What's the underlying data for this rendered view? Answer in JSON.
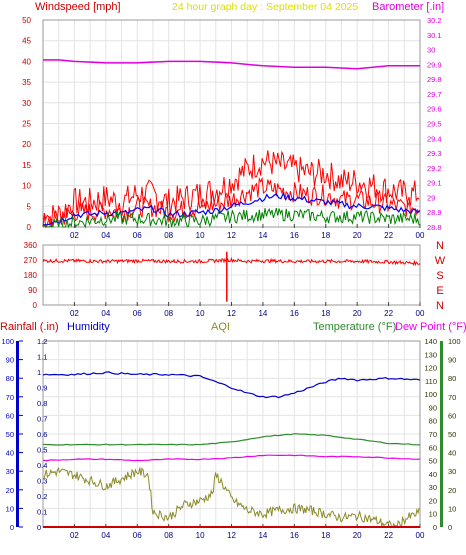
{
  "header": {
    "windspeed_label": "Windspeed [mph]",
    "graph_title": "24 hour graph day : September 04 2025",
    "barometer_label": "Barometer [.in]"
  },
  "lower_header": {
    "rainfall_label": "Rainfall (.in)",
    "humidity_label": "Humidity",
    "aqi_label": "AQI",
    "temperature_label": "Temperature (°F)",
    "dewpoint_label": "Dew Point (°F)"
  },
  "colors": {
    "wind": "#ff0000",
    "wind_avg": "#0000ff",
    "wind_low": "#008000",
    "barometer": "#dd00dd",
    "direction": "#ff0000",
    "rain": "#cc0000",
    "humidity": "#0000cc",
    "aqi": "#8b8b2a",
    "temperature": "#2e8b2e",
    "dewpoint": "#ee00ee",
    "title": "#dddd00",
    "axis_red": "#cc0000"
  },
  "chart_data": [
    {
      "type": "line",
      "name": "wind-barometer",
      "x_ticks": [
        "02",
        "04",
        "06",
        "08",
        "10",
        "12",
        "14",
        "16",
        "18",
        "20",
        "22",
        "00"
      ],
      "x_range": [
        0,
        24
      ],
      "left_axis": {
        "label": "Windspeed [mph]",
        "range": [
          0,
          50
        ],
        "ticks": [
          0,
          5,
          10,
          15,
          20,
          25,
          30,
          35,
          40,
          45,
          50
        ]
      },
      "right_axis": {
        "label": "Barometer [.in]",
        "range": [
          28.8,
          30.2
        ],
        "ticks": [
          "28.8",
          "28.9",
          "29",
          "29.1",
          "29.2",
          "29.3",
          "29.4",
          "29.5",
          "29.6",
          "29.7",
          "29.8",
          "29.9",
          "30",
          "30.1",
          "30.2"
        ]
      },
      "gust_envelope": [
        [
          0,
          2
        ],
        [
          1,
          3
        ],
        [
          2,
          6
        ],
        [
          3,
          6
        ],
        [
          4,
          7
        ],
        [
          5,
          6
        ],
        [
          6,
          8
        ],
        [
          7,
          8
        ],
        [
          8,
          6
        ],
        [
          9,
          7
        ],
        [
          10,
          8
        ],
        [
          11,
          9
        ],
        [
          12,
          11
        ],
        [
          13,
          14
        ],
        [
          14,
          16
        ],
        [
          15,
          15
        ],
        [
          16,
          14
        ],
        [
          17,
          13
        ],
        [
          18,
          13
        ],
        [
          19,
          11
        ],
        [
          20,
          11
        ],
        [
          21,
          10
        ],
        [
          22,
          9
        ],
        [
          23,
          8
        ],
        [
          24,
          8
        ]
      ],
      "average_wind": [
        [
          0,
          1
        ],
        [
          1,
          1.5
        ],
        [
          2,
          3
        ],
        [
          3,
          3
        ],
        [
          4,
          3.5
        ],
        [
          5,
          3.2
        ],
        [
          6,
          4
        ],
        [
          7,
          4.5
        ],
        [
          8,
          3
        ],
        [
          9,
          3.2
        ],
        [
          10,
          3.5
        ],
        [
          11,
          4
        ],
        [
          12,
          5
        ],
        [
          13,
          6
        ],
        [
          14,
          7
        ],
        [
          15,
          7.5
        ],
        [
          16,
          7
        ],
        [
          17,
          6.5
        ],
        [
          18,
          6
        ],
        [
          19,
          5.5
        ],
        [
          20,
          5
        ],
        [
          21,
          5
        ],
        [
          22,
          4.5
        ],
        [
          23,
          4
        ],
        [
          24,
          3.5
        ]
      ],
      "low_wind": [
        [
          0,
          0
        ],
        [
          2,
          1
        ],
        [
          4,
          2
        ],
        [
          6,
          2
        ],
        [
          8,
          1.5
        ],
        [
          10,
          1.5
        ],
        [
          12,
          2.5
        ],
        [
          14,
          3
        ],
        [
          16,
          3
        ],
        [
          18,
          2.5
        ],
        [
          20,
          2.5
        ],
        [
          22,
          2
        ],
        [
          24,
          2
        ]
      ],
      "barometer": [
        [
          0,
          29.93
        ],
        [
          1,
          29.93
        ],
        [
          2,
          29.92
        ],
        [
          4,
          29.91
        ],
        [
          6,
          29.91
        ],
        [
          8,
          29.92
        ],
        [
          10,
          29.92
        ],
        [
          12,
          29.91
        ],
        [
          14,
          29.89
        ],
        [
          16,
          29.88
        ],
        [
          18,
          29.88
        ],
        [
          20,
          29.87
        ],
        [
          21,
          29.88
        ],
        [
          22,
          29.89
        ],
        [
          24,
          29.89
        ]
      ]
    },
    {
      "type": "scatter",
      "name": "wind-direction",
      "x_ticks": [
        "02",
        "04",
        "06",
        "08",
        "10",
        "12",
        "14",
        "16",
        "18",
        "20",
        "22",
        "00"
      ],
      "x_range": [
        0,
        24
      ],
      "left_axis": {
        "range": [
          0,
          360
        ],
        "ticks": [
          0,
          90,
          180,
          270,
          360
        ]
      },
      "right_axis": {
        "labels": [
          "N",
          "W",
          "S",
          "E",
          "N"
        ]
      },
      "direction": [
        [
          0,
          265
        ],
        [
          2,
          265
        ],
        [
          4,
          262
        ],
        [
          6,
          265
        ],
        [
          8,
          262
        ],
        [
          10,
          262
        ],
        [
          12,
          270
        ],
        [
          13,
          262
        ],
        [
          14,
          265
        ],
        [
          16,
          262
        ],
        [
          18,
          262
        ],
        [
          20,
          262
        ],
        [
          22,
          258
        ],
        [
          24,
          250
        ]
      ],
      "spike": {
        "x": 11.7,
        "values": [
          20,
          320
        ]
      }
    },
    {
      "type": "line",
      "name": "rain-humidity-temperature",
      "x_ticks": [
        "02",
        "04",
        "06",
        "08",
        "10",
        "12",
        "14",
        "16",
        "18",
        "20",
        "22",
        "00"
      ],
      "x_range": [
        0,
        24
      ],
      "axis_humidity": {
        "range": [
          0,
          100
        ],
        "ticks": [
          0,
          10,
          20,
          30,
          40,
          50,
          60,
          70,
          80,
          90,
          100
        ]
      },
      "axis_rain": {
        "range": [
          0,
          1.2
        ],
        "ticks": [
          "0",
          "0.1",
          "0.2",
          "0.3",
          "0.4",
          "0.5",
          "0.6",
          "0.7",
          "0.8",
          "0.9",
          "1",
          "1.1",
          "1.2"
        ]
      },
      "axis_temperature": {
        "range": [
          0,
          140
        ],
        "ticks": [
          0,
          10,
          20,
          30,
          40,
          50,
          60,
          70,
          80,
          90,
          100,
          110,
          120,
          130,
          140
        ]
      },
      "axis_aqi": {
        "range": [
          0,
          100
        ],
        "ticks": [
          0,
          10,
          20,
          30,
          40,
          50,
          60,
          70,
          80,
          90,
          100
        ]
      },
      "humidity": [
        [
          0,
          82
        ],
        [
          2,
          82
        ],
        [
          4,
          83
        ],
        [
          6,
          82
        ],
        [
          8,
          82
        ],
        [
          10,
          81
        ],
        [
          11,
          78
        ],
        [
          12,
          75
        ],
        [
          13,
          72
        ],
        [
          14,
          70
        ],
        [
          15,
          70
        ],
        [
          16,
          72
        ],
        [
          17,
          75
        ],
        [
          18,
          78
        ],
        [
          19,
          80
        ],
        [
          20,
          79
        ],
        [
          22,
          80
        ],
        [
          24,
          79
        ]
      ],
      "temperature": [
        [
          0,
          62
        ],
        [
          2,
          62
        ],
        [
          4,
          62
        ],
        [
          6,
          62
        ],
        [
          8,
          62
        ],
        [
          10,
          62
        ],
        [
          12,
          64
        ],
        [
          14,
          68
        ],
        [
          16,
          70
        ],
        [
          18,
          69
        ],
        [
          20,
          66
        ],
        [
          22,
          63
        ],
        [
          24,
          62
        ]
      ],
      "dewpoint": [
        [
          0,
          50
        ],
        [
          2,
          51
        ],
        [
          4,
          51
        ],
        [
          6,
          50
        ],
        [
          8,
          51
        ],
        [
          10,
          51
        ],
        [
          12,
          52
        ],
        [
          14,
          54
        ],
        [
          16,
          54
        ],
        [
          18,
          53
        ],
        [
          20,
          53
        ],
        [
          22,
          52
        ],
        [
          24,
          51
        ]
      ],
      "aqi": [
        [
          0,
          28
        ],
        [
          1,
          30
        ],
        [
          2,
          28
        ],
        [
          3,
          25
        ],
        [
          4,
          22
        ],
        [
          5,
          26
        ],
        [
          6,
          30
        ],
        [
          6.7,
          28
        ],
        [
          7,
          8
        ],
        [
          8,
          5
        ],
        [
          9,
          12
        ],
        [
          10,
          14
        ],
        [
          10.8,
          18
        ],
        [
          11,
          28
        ],
        [
          11.3,
          25
        ],
        [
          12,
          15
        ],
        [
          13,
          9
        ],
        [
          14,
          7
        ],
        [
          15,
          9
        ],
        [
          16,
          10
        ],
        [
          17,
          9
        ],
        [
          18,
          7
        ],
        [
          19,
          5
        ],
        [
          20,
          6
        ],
        [
          21,
          4
        ],
        [
          22,
          1
        ],
        [
          22.5,
          0
        ],
        [
          23,
          4
        ],
        [
          24,
          8
        ]
      ],
      "rain": [
        [
          0,
          0
        ],
        [
          24,
          0
        ]
      ]
    }
  ]
}
